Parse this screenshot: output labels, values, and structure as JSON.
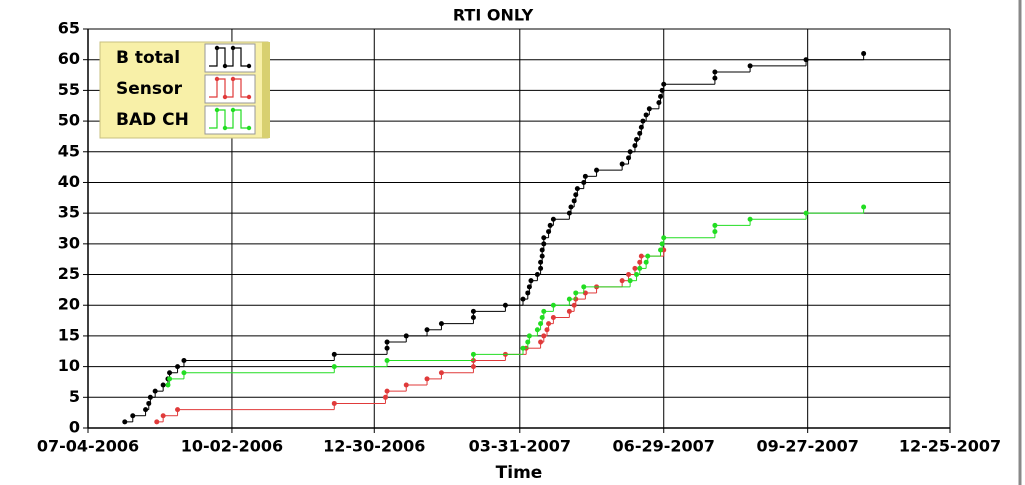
{
  "chart_data": {
    "type": "step",
    "title": "RTI ONLY",
    "x_label": "Time",
    "xlim": [
      "07-04-2006",
      "12-25-2007"
    ],
    "xticks": [
      "07-04-2006",
      "10-02-2006",
      "12-30-2006",
      "03-31-2007",
      "06-29-2007",
      "09-27-2007",
      "12-25-2007"
    ],
    "ylim": [
      0,
      65
    ],
    "yticks": [
      0,
      5,
      10,
      15,
      20,
      25,
      30,
      35,
      40,
      45,
      50,
      55,
      60,
      65
    ],
    "grid": true,
    "legend": "top-left",
    "series": [
      {
        "name": "B total",
        "color": "#000000",
        "x": [
          "07-27-2006",
          "08-01-2006",
          "08-09-2006",
          "08-11-2006",
          "08-12-2006",
          "08-15-2006",
          "08-20-2006",
          "08-23-2006",
          "08-24-2006",
          "08-29-2006",
          "09-02-2006",
          "12-05-2006",
          "01-07-2007",
          "01-07-2007",
          "01-19-2007",
          "02-01-2007",
          "02-10-2007",
          "03-02-2007",
          "03-02-2007",
          "03-22-2007",
          "04-02-2007",
          "04-05-2007",
          "04-06-2007",
          "04-07-2007",
          "04-11-2007",
          "04-13-2007",
          "04-13-2007",
          "04-14-2007",
          "04-14-2007",
          "04-15-2007",
          "04-15-2007",
          "04-18-2007",
          "04-19-2007",
          "04-21-2007",
          "05-01-2007",
          "05-02-2007",
          "05-04-2007",
          "05-05-2007",
          "05-06-2007",
          "05-10-2007",
          "05-11-2007",
          "05-18-2007",
          "06-03-2007",
          "06-07-2007",
          "06-08-2007",
          "06-11-2007",
          "06-12-2007",
          "06-14-2007",
          "06-15-2007",
          "06-16-2007",
          "06-18-2007",
          "06-20-2007",
          "06-26-2007",
          "06-27-2007",
          "06-28-2007",
          "06-29-2007",
          "07-31-2007",
          "07-31-2007",
          "08-22-2007",
          "09-26-2007",
          "11-01-2007"
        ],
        "values": [
          1,
          2,
          3,
          4,
          5,
          6,
          7,
          8,
          9,
          10,
          11,
          12,
          13,
          14,
          15,
          16,
          17,
          18,
          19,
          20,
          21,
          22,
          23,
          24,
          25,
          26,
          27,
          28,
          29,
          30,
          31,
          32,
          33,
          34,
          35,
          36,
          37,
          38,
          39,
          40,
          41,
          42,
          43,
          44,
          45,
          46,
          47,
          48,
          49,
          50,
          51,
          52,
          53,
          54,
          55,
          56,
          57,
          58,
          59,
          60,
          61
        ]
      },
      {
        "name": "Sensor",
        "color": "#e03a3a",
        "x": [
          "08-16-2006",
          "08-20-2006",
          "08-29-2006",
          "12-05-2006",
          "01-06-2007",
          "01-07-2007",
          "01-19-2007",
          "02-01-2007",
          "02-10-2007",
          "03-02-2007",
          "03-02-2007",
          "03-22-2007",
          "04-04-2007",
          "04-13-2007",
          "04-15-2007",
          "04-17-2007",
          "04-18-2007",
          "04-21-2007",
          "05-01-2007",
          "05-04-2007",
          "05-05-2007",
          "05-11-2007",
          "05-18-2007",
          "06-03-2007",
          "06-07-2007",
          "06-11-2007",
          "06-14-2007",
          "06-15-2007",
          "06-29-2007"
        ],
        "values": [
          1,
          2,
          3,
          4,
          5,
          6,
          7,
          8,
          9,
          10,
          11,
          12,
          13,
          14,
          15,
          16,
          17,
          18,
          19,
          20,
          21,
          22,
          23,
          24,
          25,
          26,
          27,
          28,
          29
        ]
      },
      {
        "name": "BAD CH",
        "color": "#22dd22",
        "x": [
          "08-23-2006",
          "08-24-2006",
          "09-02-2006",
          "12-05-2006",
          "01-07-2007",
          "03-02-2007",
          "04-02-2007",
          "04-05-2007",
          "04-06-2007",
          "04-11-2007",
          "04-13-2007",
          "04-14-2007",
          "04-15-2007",
          "04-21-2007",
          "05-01-2007",
          "05-05-2007",
          "05-10-2007",
          "06-08-2007",
          "06-12-2007",
          "06-14-2007",
          "06-18-2007",
          "06-19-2007",
          "06-27-2007",
          "06-28-2007",
          "06-29-2007",
          "07-31-2007",
          "07-31-2007",
          "08-22-2007",
          "09-26-2007",
          "11-01-2007"
        ],
        "values": [
          7,
          8,
          9,
          10,
          11,
          12,
          13,
          14,
          15,
          16,
          17,
          18,
          19,
          20,
          21,
          22,
          23,
          24,
          25,
          26,
          27,
          28,
          29,
          30,
          31,
          32,
          33,
          34,
          35,
          36
        ]
      }
    ]
  }
}
